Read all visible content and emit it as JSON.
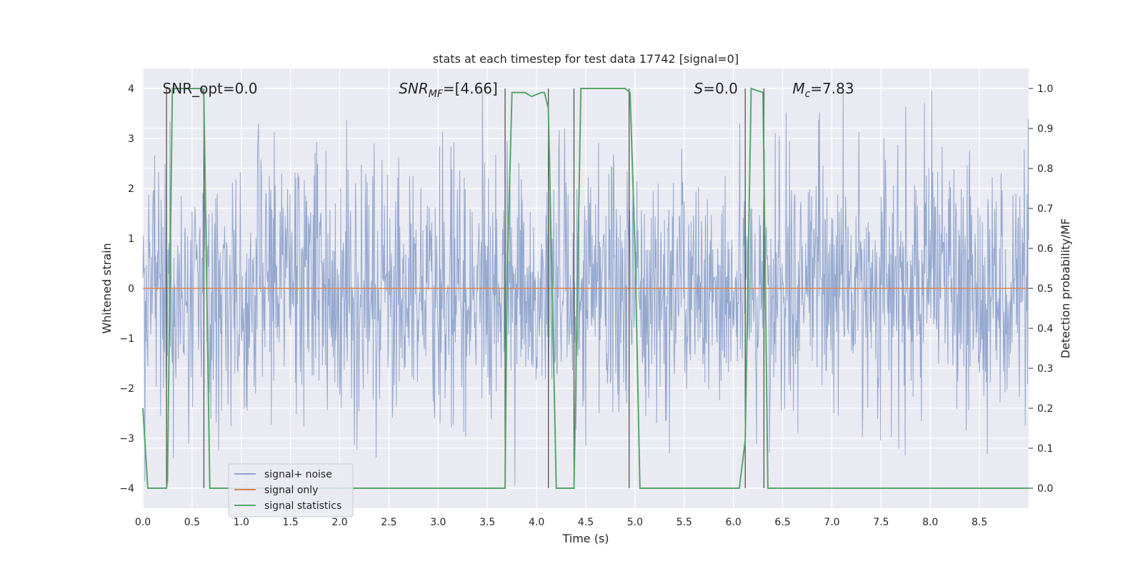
{
  "chart_data": {
    "type": "line",
    "title": "stats at each timestep for test data 17742 [signal=0]",
    "xlabel": "Time (s)",
    "ylabel": "Whitened strain",
    "y2label": "Detection probability/MF",
    "xlim": [
      0,
      9.0
    ],
    "ylim": [
      -4.4,
      4.4
    ],
    "y2lim": [
      -0.05,
      1.05
    ],
    "xticks": [
      0.0,
      0.5,
      1.0,
      1.5,
      2.0,
      2.5,
      3.0,
      3.5,
      4.0,
      4.5,
      5.0,
      5.5,
      6.0,
      6.5,
      7.0,
      7.5,
      8.0,
      8.5
    ],
    "xtick_labels": [
      "0.0",
      "0.5",
      "1.0",
      "1.5",
      "2.0",
      "2.5",
      "3.0",
      "3.5",
      "4.0",
      "4.5",
      "5.0",
      "5.5",
      "6.0",
      "6.5",
      "7.0",
      "7.5",
      "8.0",
      "8.5"
    ],
    "yticks": [
      -4,
      -3,
      -2,
      -1,
      0,
      1,
      2,
      3,
      4
    ],
    "ytick_labels": [
      "−4",
      "−3",
      "−2",
      "−1",
      "0",
      "1",
      "2",
      "3",
      "4"
    ],
    "y2ticks": [
      0.0,
      0.1,
      0.2,
      0.3,
      0.4,
      0.5,
      0.6,
      0.7,
      0.8,
      0.9,
      1.0
    ],
    "y2tick_labels": [
      "0.0",
      "0.1",
      "0.2",
      "0.3",
      "0.4",
      "0.5",
      "0.6",
      "0.7",
      "0.8",
      "0.9",
      "1.0"
    ],
    "grid": true,
    "legend_position": "lower-left",
    "series": [
      {
        "name": "signal+ noise",
        "color": "#8fa4cc",
        "description": "whitened noise, approx. ±1.6 typical envelope with spikes up to ~4"
      },
      {
        "name": "signal only",
        "color": "#dd8452",
        "values_constant": 0
      },
      {
        "name": "signal statistics",
        "color": "#55a868",
        "axis": "right",
        "x": [
          0.0,
          0.05,
          0.24,
          0.25,
          0.3,
          0.35,
          0.6,
          0.62,
          0.68,
          0.9,
          2.0,
          2.5,
          3.5,
          3.68,
          3.7,
          3.75,
          3.88,
          3.95,
          4.05,
          4.08,
          4.12,
          4.2,
          4.3,
          4.38,
          4.45,
          4.9,
          4.95,
          5.0,
          5.05,
          5.5,
          6.0,
          6.06,
          6.12,
          6.18,
          6.3,
          6.35,
          6.5,
          7.0,
          8.0,
          9.0
        ],
        "y": [
          0.2,
          0.0,
          0.0,
          0.02,
          1.0,
          1.0,
          1.0,
          0.98,
          0.0,
          0.0,
          0.0,
          0.0,
          0.0,
          0.0,
          0.52,
          0.99,
          0.99,
          0.98,
          0.99,
          0.99,
          0.95,
          0.0,
          0.0,
          0.0,
          1.0,
          1.0,
          0.99,
          0.6,
          0.0,
          0.0,
          0.0,
          0.0,
          0.12,
          1.0,
          0.99,
          0.0,
          0.0,
          0.0,
          0.0,
          0.0
        ]
      }
    ],
    "vlines": [
      0.24,
      0.62,
      3.68,
      4.12,
      4.38,
      4.94,
      6.12,
      6.31
    ],
    "vline_color": "#555555",
    "annotations": [
      {
        "text": "SNR_opt=0.0",
        "x": 0.2
      },
      {
        "text": "SNR",
        "sub": "MF",
        "suffix": "=[4.66]",
        "italic": true,
        "x": 2.6
      },
      {
        "text": "S",
        "suffix": "=0.0",
        "italic": true,
        "x": 5.6
      },
      {
        "text": "M",
        "sub": "c",
        "suffix": "=7.83",
        "italic": true,
        "x": 6.6
      }
    ],
    "legend": [
      "signal+ noise",
      "signal only",
      "signal statistics"
    ]
  }
}
